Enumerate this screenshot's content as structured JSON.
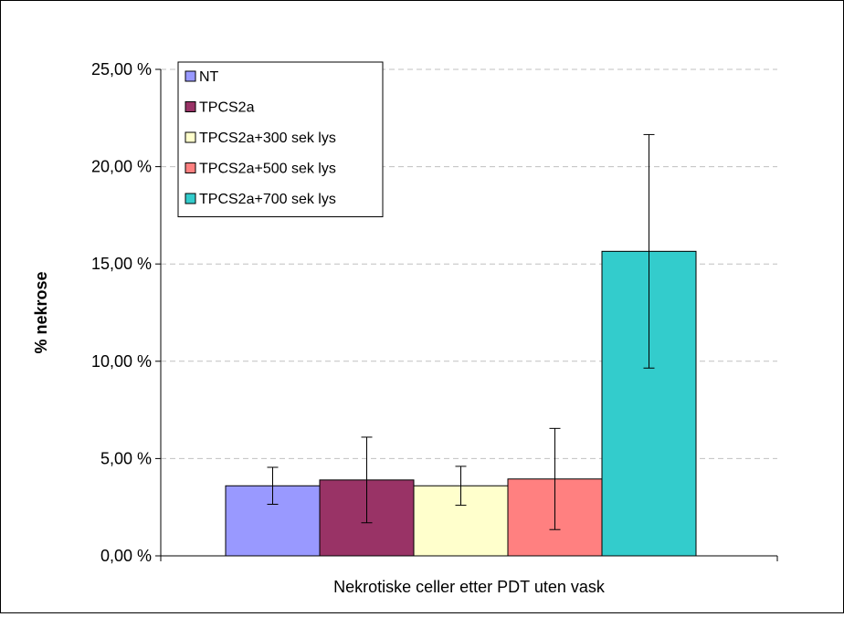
{
  "chart_data": {
    "type": "bar",
    "title": "",
    "xlabel": "Nekrotiske celler etter PDT uten vask",
    "ylabel": "% nekrose",
    "ylim": [
      0,
      25
    ],
    "yticks": [
      0,
      5,
      10,
      15,
      20,
      25
    ],
    "ytick_labels": [
      "0,00 %",
      "5,00 %",
      "10,00 %",
      "15,00 %",
      "20,00 %",
      "25,00 %"
    ],
    "categories": [
      "Nekrotiske celler etter PDT uten vask"
    ],
    "series": [
      {
        "name": "NT",
        "value": 3.6,
        "error": 0.95,
        "color": "#9999FF"
      },
      {
        "name": "TPCS2a",
        "value": 3.9,
        "error": 2.2,
        "color": "#993366"
      },
      {
        "name": "TPCS2a+300 sek lys",
        "value": 3.6,
        "error": 1.0,
        "color": "#FFFFCC"
      },
      {
        "name": "TPCS2a+500 sek lys",
        "value": 3.95,
        "error": 2.6,
        "color": "#FF8080"
      },
      {
        "name": "TPCS2a+700 sek lys",
        "value": 15.65,
        "error": 6.0,
        "color": "#33CCCC"
      }
    ],
    "grid": true,
    "legend_position": "top-left"
  }
}
